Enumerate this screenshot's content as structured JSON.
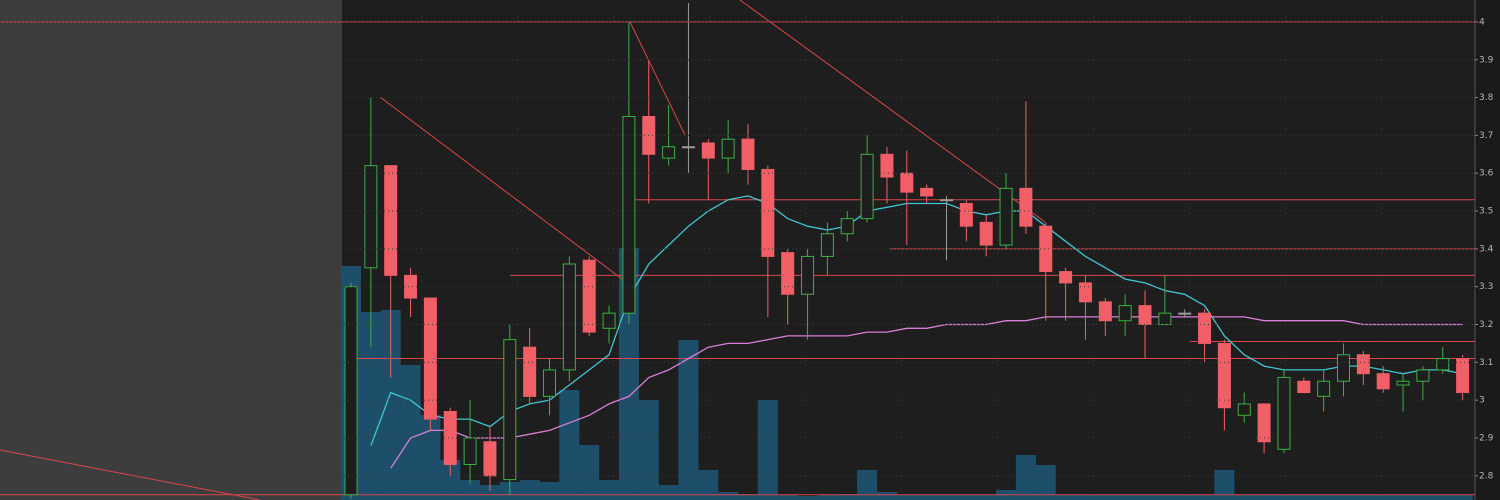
{
  "chart_data": {
    "type": "candlestick",
    "ylim": [
      2.736,
      4.058
    ],
    "yticks": [
      2.8,
      2.9,
      3,
      3.1,
      3.2,
      3.3,
      3.4,
      3.5,
      3.6,
      3.7,
      3.8,
      3.9,
      4
    ],
    "grid": true,
    "up_color": "#3cb043",
    "down_color": "#f25f66",
    "doji_color": "#9a9a9a",
    "open": [
      2.75,
      3.35,
      3.62,
      3.33,
      3.27,
      2.97,
      2.83,
      2.89,
      2.79,
      3.14,
      3.01,
      3.08,
      3.37,
      3.19,
      3.23,
      3.75,
      3.64,
      3.67,
      3.68,
      3.64,
      3.69,
      3.61,
      3.39,
      3.28,
      3.38,
      3.44,
      3.48,
      3.65,
      3.6,
      3.56,
      3.53,
      3.52,
      3.47,
      3.41,
      3.56,
      3.46,
      3.34,
      3.31,
      3.26,
      3.21,
      3.25,
      3.2,
      3.23,
      3.23,
      3.15,
      2.96,
      2.99,
      2.87,
      3.05,
      3.01,
      3.05,
      3.12,
      3.07,
      3.04,
      3.05,
      3.08,
      3.11
    ],
    "high": [
      3.31,
      3.8,
      3.62,
      3.35,
      3.27,
      2.98,
      3.0,
      2.93,
      3.2,
      3.19,
      3.11,
      3.38,
      3.38,
      3.25,
      4.0,
      3.9,
      3.78,
      4.05,
      3.69,
      3.74,
      3.73,
      3.62,
      3.4,
      3.4,
      3.47,
      3.5,
      3.7,
      3.67,
      3.66,
      3.57,
      3.54,
      3.53,
      3.49,
      3.6,
      3.79,
      3.47,
      3.35,
      3.33,
      3.27,
      3.28,
      3.29,
      3.33,
      3.24,
      3.24,
      3.16,
      3.02,
      2.99,
      3.08,
      3.06,
      3.08,
      3.15,
      3.13,
      3.09,
      3.07,
      3.09,
      3.14,
      3.12
    ],
    "low": [
      2.74,
      3.14,
      3.06,
      3.22,
      2.92,
      2.8,
      2.78,
      2.76,
      2.75,
      2.99,
      2.96,
      3.05,
      3.17,
      3.15,
      3.2,
      3.52,
      3.62,
      3.6,
      3.53,
      3.6,
      3.57,
      3.22,
      3.2,
      3.16,
      3.33,
      3.42,
      3.47,
      3.52,
      3.41,
      3.52,
      3.37,
      3.42,
      3.38,
      3.4,
      3.44,
      3.21,
      3.21,
      3.16,
      3.17,
      3.17,
      3.11,
      3.2,
      3.22,
      3.1,
      2.92,
      2.94,
      2.86,
      2.86,
      3.02,
      2.97,
      3.01,
      3.04,
      3.02,
      2.97,
      3.0,
      3.07,
      3.0
    ],
    "close": [
      3.3,
      3.62,
      3.33,
      3.27,
      2.95,
      2.83,
      2.9,
      2.8,
      3.16,
      3.01,
      3.08,
      3.36,
      3.18,
      3.23,
      3.75,
      3.65,
      3.67,
      3.67,
      3.64,
      3.69,
      3.61,
      3.38,
      3.28,
      3.38,
      3.44,
      3.48,
      3.65,
      3.59,
      3.55,
      3.54,
      3.53,
      3.46,
      3.41,
      3.56,
      3.46,
      3.34,
      3.31,
      3.26,
      3.21,
      3.25,
      3.2,
      3.23,
      3.23,
      3.15,
      2.98,
      2.99,
      2.89,
      3.06,
      3.02,
      3.05,
      3.12,
      3.07,
      3.03,
      3.05,
      3.08,
      3.11,
      3.02
    ],
    "volume": {
      "color": "#1d4f6b",
      "lim": [
        0,
        300
      ],
      "values": [
        234,
        188,
        190,
        135,
        85,
        40,
        20,
        15,
        18,
        20,
        18,
        110,
        55,
        20,
        252,
        100,
        15,
        160,
        30,
        8,
        6,
        100,
        5,
        4,
        5,
        6,
        30,
        8,
        5,
        5,
        5,
        5,
        5,
        10,
        45,
        35,
        5,
        5,
        5,
        5,
        5,
        5,
        5,
        5,
        30,
        5,
        5,
        5,
        5,
        5,
        5,
        5,
        5,
        5,
        5,
        5,
        5
      ]
    },
    "lines": [
      {
        "color": "#3fc6cf",
        "values": [
          null,
          2.88,
          3.02,
          3.0,
          2.96,
          2.95,
          2.95,
          2.93,
          2.97,
          2.99,
          3.0,
          3.04,
          3.08,
          3.12,
          3.27,
          3.36,
          3.41,
          3.46,
          3.5,
          3.53,
          3.54,
          3.52,
          3.48,
          3.46,
          3.45,
          3.46,
          3.5,
          3.51,
          3.52,
          3.52,
          3.52,
          3.5,
          3.49,
          3.5,
          3.5,
          3.46,
          3.42,
          3.38,
          3.35,
          3.32,
          3.31,
          3.29,
          3.28,
          3.25,
          3.17,
          3.12,
          3.09,
          3.08,
          3.08,
          3.08,
          3.09,
          3.09,
          3.08,
          3.07,
          3.08,
          3.08,
          3.07
        ]
      },
      {
        "color": "#d77fd6",
        "values": [
          null,
          null,
          2.82,
          2.9,
          2.92,
          2.92,
          2.9,
          2.9,
          2.9,
          2.91,
          2.92,
          2.94,
          2.96,
          2.99,
          3.01,
          3.06,
          3.08,
          3.11,
          3.14,
          3.15,
          3.15,
          3.16,
          3.17,
          3.17,
          3.17,
          3.17,
          3.18,
          3.18,
          3.19,
          3.19,
          3.2,
          3.2,
          3.2,
          3.21,
          3.21,
          3.22,
          3.22,
          3.22,
          3.22,
          3.22,
          3.22,
          3.22,
          3.22,
          3.22,
          3.22,
          3.22,
          3.21,
          3.21,
          3.21,
          3.21,
          3.21,
          3.2,
          3.2,
          3.2,
          3.2,
          3.2,
          3.2
        ]
      }
    ],
    "levels": {
      "color": "#d9464b",
      "values": [
        4.0,
        3.53,
        3.4,
        3.33,
        3.155,
        3.11,
        2.75
      ]
    }
  }
}
